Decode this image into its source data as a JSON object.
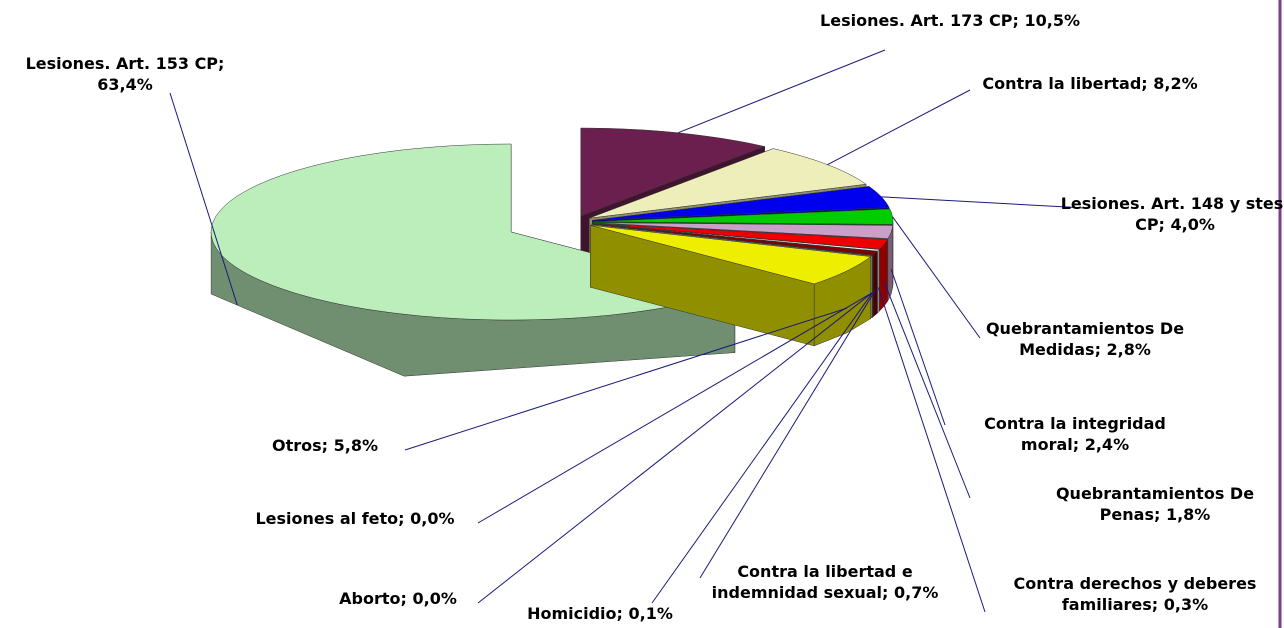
{
  "chart_data": {
    "type": "pie3d",
    "categories": [
      "Lesiones. Art. 173 CP;",
      "Contra la libertad;",
      "Lesiones. Art. 148 y stes. CP;",
      "Quebrantamientos De Medidas;",
      "Contra la integridad moral;",
      "Quebrantamientos De Penas;",
      "Contra derechos y deberes familiares;",
      "Contra la libertad e indemnidad sexual;",
      "Homicidio;",
      "Aborto;",
      "Lesiones al feto;",
      "Otros;",
      "Lesiones. Art. 153 CP;"
    ],
    "values": [
      10.5,
      8.2,
      4.0,
      2.8,
      2.4,
      1.8,
      0.3,
      0.7,
      0.1,
      0.0,
      0.0,
      5.8,
      63.4
    ],
    "value_labels": [
      "10,5%",
      "8,2%",
      "4,0%",
      "2,8%",
      "2,4%",
      "1,8%",
      "0,3%",
      "0,7%",
      "0,1%",
      "0,0%",
      "0,0%",
      "5,8%",
      "63,4%"
    ],
    "colors": [
      "#6b1f4f",
      "#eeeebb",
      "#0000ee",
      "#00cc00",
      "#c8a0c8",
      "#ee0000",
      "#f4f4f4",
      "#800000",
      "#1a1a1a",
      "#008080",
      "#d0d0d0",
      "#eeee00",
      "#bbeebb"
    ]
  }
}
